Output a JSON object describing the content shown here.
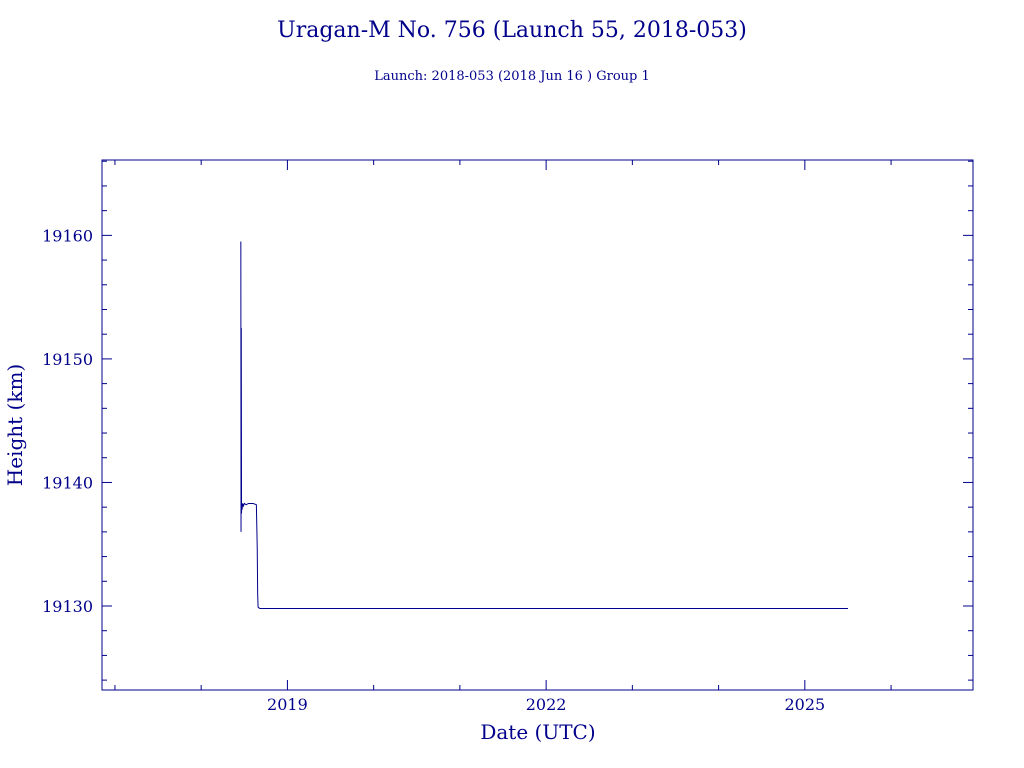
{
  "chart_data": {
    "type": "line",
    "title": "Uragan-M No. 756 (Launch 55, 2018-053)",
    "subtitle": "Launch: 2018-053  (2018 Jun 16 )  Group 1",
    "xlabel": "Date (UTC)",
    "ylabel": "Height (km)",
    "xlim": [
      2016.85,
      2026.95
    ],
    "ylim": [
      19123.2,
      19166.1
    ],
    "x_ticks": [
      2019,
      2022,
      2025
    ],
    "x_tick_labels": [
      "2019",
      "2022",
      "2025"
    ],
    "y_ticks": [
      19130,
      19140,
      19150,
      19160
    ],
    "y_tick_labels": [
      "19130",
      "19140",
      "19150",
      "19160"
    ],
    "grid": false,
    "color": "#00008b",
    "series": [
      {
        "x": [
          2018.46,
          2018.462,
          2018.465,
          2018.468,
          2018.47,
          2018.475,
          2018.48,
          2018.49,
          2018.5,
          2018.52,
          2018.55,
          2018.6,
          2018.64,
          2018.65,
          2018.655,
          2018.66,
          2018.68,
          2018.7,
          2018.75,
          2018.8,
          2019.0,
          2019.5,
          2020.0,
          2021.0,
          2022.0,
          2023.0,
          2024.0,
          2025.0,
          2025.5
        ],
        "y": [
          19159.5,
          19136.0,
          19152.5,
          19137.5,
          19138.3,
          19137.8,
          19138.3,
          19138.1,
          19138.3,
          19138.2,
          19138.3,
          19138.3,
          19138.2,
          19134.7,
          19131.0,
          19129.9,
          19129.8,
          19129.8,
          19129.8,
          19129.8,
          19129.8,
          19129.8,
          19129.8,
          19129.8,
          19129.8,
          19129.8,
          19129.8,
          19129.8,
          19129.8
        ]
      }
    ]
  }
}
